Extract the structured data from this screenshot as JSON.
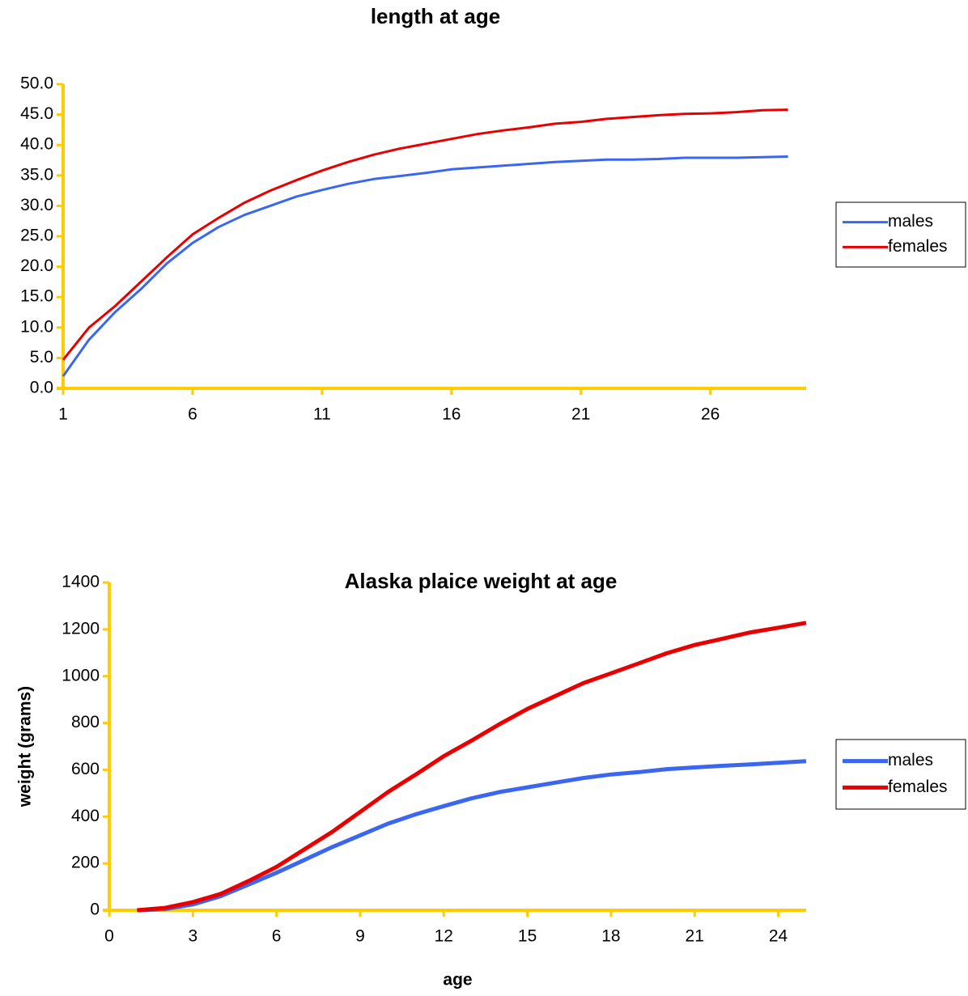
{
  "chart_data": [
    {
      "type": "line",
      "title": "length at age",
      "x": [
        1,
        2,
        3,
        4,
        5,
        6,
        7,
        8,
        9,
        10,
        11,
        12,
        13,
        14,
        15,
        16,
        17,
        18,
        19,
        20,
        21,
        22,
        23,
        24,
        25,
        26,
        27,
        28,
        29
      ],
      "series": [
        {
          "name": "males",
          "color": "#3a66f0",
          "values": [
            2,
            8,
            12.5,
            16.3,
            20.5,
            23.9,
            26.5,
            28.5,
            30,
            31.5,
            32.6,
            33.6,
            34.4,
            34.9,
            35.4,
            36,
            36.3,
            36.6,
            36.9,
            37.2,
            37.4,
            37.6,
            37.6,
            37.7,
            37.9,
            37.9,
            37.9,
            38,
            38.1
          ]
        },
        {
          "name": "females",
          "color": "#e80000",
          "values": [
            4.7,
            10,
            13.5,
            17.5,
            21.5,
            25.3,
            28,
            30.5,
            32.5,
            34.2,
            35.8,
            37.2,
            38.4,
            39.4,
            40.2,
            41,
            41.8,
            42.4,
            42.9,
            43.5,
            43.8,
            44.3,
            44.6,
            44.9,
            45.1,
            45.2,
            45.4,
            45.7,
            45.8
          ]
        }
      ],
      "xlim": [
        1,
        29.7
      ],
      "xticks": [
        1,
        6,
        11,
        16,
        21,
        26
      ],
      "ylim": [
        0,
        50
      ],
      "yticks": [
        {
          "value": 0,
          "label": "0.0"
        },
        {
          "value": 5,
          "label": "5.0"
        },
        {
          "value": 10,
          "label": "10.0"
        },
        {
          "value": 15,
          "label": "15.0"
        },
        {
          "value": 20,
          "label": "20.0"
        },
        {
          "value": 25,
          "label": "25.0"
        },
        {
          "value": 30,
          "label": "30.0"
        },
        {
          "value": 35,
          "label": "35.0"
        },
        {
          "value": 40,
          "label": "40.0"
        },
        {
          "value": 45,
          "label": "45.0"
        },
        {
          "value": 50,
          "label": "50.0"
        }
      ],
      "grid": false,
      "legend": "right"
    },
    {
      "type": "line",
      "title": "Alaska plaice weight at age",
      "xlabel": "age",
      "ylabel": "weight (grams)",
      "x": [
        1,
        2,
        3,
        4,
        5,
        6,
        7,
        8,
        9,
        10,
        11,
        12,
        13,
        14,
        15,
        16,
        17,
        18,
        19,
        20,
        21,
        22,
        23,
        24,
        25
      ],
      "series": [
        {
          "name": "males",
          "color": "#3a66f0",
          "values": [
            0,
            5,
            25,
            60,
            110,
            160,
            215,
            270,
            320,
            370,
            410,
            445,
            478,
            505,
            525,
            545,
            565,
            580,
            590,
            603,
            610,
            617,
            623,
            630,
            637
          ]
        },
        {
          "name": "females",
          "color": "#e80000",
          "values": [
            0,
            10,
            35,
            70,
            125,
            185,
            260,
            335,
            420,
            505,
            580,
            658,
            725,
            795,
            860,
            915,
            970,
            1012,
            1055,
            1098,
            1133,
            1160,
            1187,
            1207,
            1228
          ]
        }
      ],
      "xlim": [
        0,
        25
      ],
      "xticks": [
        0,
        3,
        6,
        9,
        12,
        15,
        18,
        21,
        24
      ],
      "ylim": [
        0,
        1400
      ],
      "yticks": [
        0,
        200,
        400,
        600,
        800,
        1000,
        1200,
        1400
      ],
      "grid": false,
      "legend": "right"
    }
  ]
}
